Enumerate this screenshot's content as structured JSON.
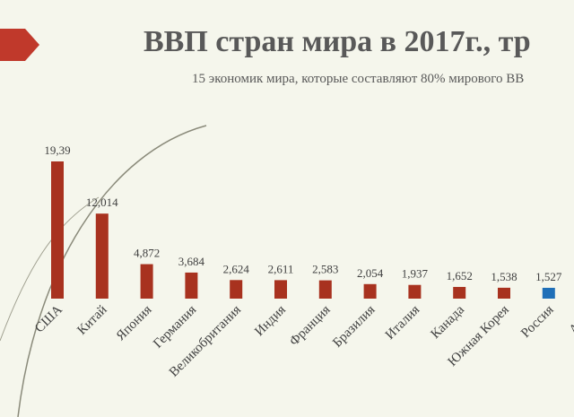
{
  "chart_data": {
    "type": "bar",
    "title": "ВВП стран мира в 2017г., тр",
    "subtitle": "15 экономик мира, которые составляют 80% мирового ВВ",
    "categories": [
      "США",
      "Китай",
      "Япония",
      "Германия",
      "Великобритания",
      "Индия",
      "Франция",
      "Бразилия",
      "Италия",
      "Канада",
      "Южная Корея",
      "Россия",
      "Австр"
    ],
    "values": [
      19.39,
      12.014,
      4.872,
      3.684,
      2.624,
      2.611,
      2.583,
      2.054,
      1.937,
      1.652,
      1.538,
      1.527,
      null
    ],
    "value_labels": [
      "19,39",
      "12,014",
      "4,872",
      "3,684",
      "2,624",
      "2,611",
      "2,583",
      "2,054",
      "1,937",
      "1,652",
      "1,538",
      "1,527",
      null
    ],
    "colors": [
      "#a8321f",
      "#a8321f",
      "#a8321f",
      "#a8321f",
      "#a8321f",
      "#a8321f",
      "#a8321f",
      "#a8321f",
      "#a8321f",
      "#a8321f",
      "#a8321f",
      "#1f6fb8",
      "#a8321f"
    ]
  }
}
